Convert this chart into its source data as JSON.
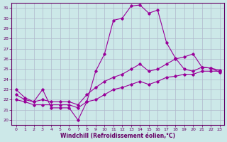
{
  "xlabel": "Windchill (Refroidissement éolien,°C)",
  "background_color": "#cce8e8",
  "grid_color": "#b0b8cc",
  "line_color": "#990099",
  "xlim": [
    -0.5,
    23.5
  ],
  "ylim": [
    19.5,
    31.5
  ],
  "xticks": [
    0,
    1,
    2,
    3,
    4,
    5,
    6,
    7,
    8,
    9,
    10,
    11,
    12,
    13,
    14,
    15,
    16,
    17,
    18,
    19,
    20,
    21,
    22,
    23
  ],
  "yticks": [
    20,
    21,
    22,
    23,
    24,
    25,
    26,
    27,
    28,
    29,
    30,
    31
  ],
  "line1_x": [
    0,
    1,
    2,
    3,
    4,
    5,
    6,
    7,
    8,
    9,
    10,
    11,
    12,
    13,
    14,
    15,
    16,
    17,
    18,
    19,
    20,
    21,
    22,
    23
  ],
  "line1_y": [
    23.0,
    22.2,
    21.8,
    23.0,
    21.2,
    21.2,
    21.2,
    20.0,
    21.8,
    24.8,
    26.5,
    29.8,
    30.0,
    31.2,
    31.3,
    30.5,
    30.8,
    27.6,
    26.1,
    25.0,
    24.8,
    25.2,
    25.1,
    24.7
  ],
  "line2_x": [
    0,
    1,
    2,
    3,
    4,
    5,
    6,
    7,
    8,
    9,
    10,
    11,
    12,
    13,
    14,
    15,
    16,
    17,
    18,
    19,
    20,
    21,
    22,
    23
  ],
  "line2_y": [
    22.5,
    22.0,
    21.8,
    22.0,
    21.8,
    21.8,
    21.8,
    21.5,
    22.5,
    23.2,
    23.8,
    24.2,
    24.5,
    25.0,
    25.5,
    24.8,
    25.0,
    25.5,
    26.0,
    26.2,
    26.5,
    25.2,
    25.1,
    24.9
  ],
  "line3_x": [
    0,
    1,
    2,
    3,
    4,
    5,
    6,
    7,
    8,
    9,
    10,
    11,
    12,
    13,
    14,
    15,
    16,
    17,
    18,
    19,
    20,
    21,
    22,
    23
  ],
  "line3_y": [
    22.0,
    21.8,
    21.5,
    21.5,
    21.5,
    21.5,
    21.5,
    21.2,
    21.8,
    22.0,
    22.5,
    23.0,
    23.2,
    23.5,
    23.8,
    23.5,
    23.8,
    24.2,
    24.3,
    24.5,
    24.5,
    24.8,
    24.8,
    24.8
  ]
}
